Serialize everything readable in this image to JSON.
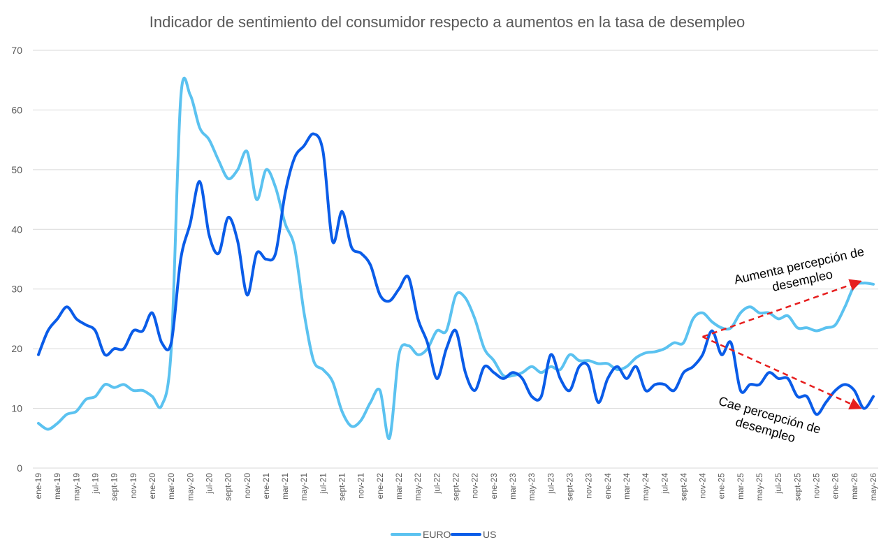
{
  "chart_data": {
    "type": "line",
    "title": "Indicador de sentimiento del consumidor respecto a aumentos en la tasa de desempleo",
    "xlabel": "",
    "ylabel": "",
    "ylim": [
      0,
      70
    ],
    "yticks": [
      "0",
      "10",
      "20",
      "30",
      "40",
      "50",
      "60",
      "70"
    ],
    "grid": true,
    "legend_position": "bottom",
    "x_tick_labels": [
      "ene-19",
      "mar-19",
      "may-19",
      "jul-19",
      "sept-19",
      "nov-19",
      "ene-20",
      "mar-20",
      "may-20",
      "jul-20",
      "sept-20",
      "nov-20",
      "ene-21",
      "mar-21",
      "may-21",
      "jul-21",
      "sept-21",
      "nov-21",
      "ene-22",
      "mar-22",
      "may-22",
      "jul-22",
      "sept-22",
      "nov-22",
      "ene-23",
      "mar-23",
      "may-23",
      "jul-23",
      "sept-23",
      "nov-23",
      "ene-24",
      "mar-24",
      "may-24",
      "jul-24",
      "sept-24",
      "nov-24",
      "ene-25",
      "mar-25",
      "may-25",
      "jul-25",
      "sept-25",
      "nov-25",
      "ene-26",
      "mar-26",
      "may-26"
    ],
    "x": [
      "ene-19",
      "feb-19",
      "mar-19",
      "abr-19",
      "may-19",
      "jun-19",
      "jul-19",
      "ago-19",
      "sept-19",
      "oct-19",
      "nov-19",
      "dic-19",
      "ene-20",
      "feb-20",
      "mar-20",
      "abr-20",
      "may-20",
      "jun-20",
      "jul-20",
      "ago-20",
      "sept-20",
      "oct-20",
      "nov-20",
      "dic-20",
      "ene-21",
      "feb-21",
      "mar-21",
      "abr-21",
      "may-21",
      "jun-21",
      "jul-21",
      "ago-21",
      "sept-21",
      "oct-21",
      "nov-21",
      "dic-21",
      "ene-22",
      "feb-22",
      "mar-22",
      "abr-22",
      "may-22",
      "jun-22",
      "jul-22",
      "ago-22",
      "sept-22",
      "oct-22",
      "nov-22",
      "dic-22",
      "ene-23",
      "feb-23",
      "mar-23",
      "abr-23",
      "may-23",
      "jun-23",
      "jul-23",
      "ago-23",
      "sept-23",
      "oct-23",
      "nov-23",
      "dic-23",
      "ene-24",
      "feb-24",
      "mar-24",
      "abr-24",
      "may-24",
      "jun-24",
      "jul-24",
      "ago-24",
      "sept-24",
      "oct-24",
      "nov-24",
      "dic-24",
      "ene-25",
      "feb-25",
      "mar-25",
      "abr-25",
      "may-25",
      "jun-25",
      "jul-25",
      "ago-25",
      "sept-25",
      "oct-25",
      "nov-25",
      "dic-25",
      "ene-26",
      "feb-26",
      "mar-26",
      "abr-26",
      "may-26"
    ],
    "series": [
      {
        "name": "EURO",
        "color": "#5BC2F0",
        "values": [
          7.5,
          6.5,
          7.5,
          9,
          9.5,
          11.5,
          12,
          14,
          13.5,
          14,
          13,
          13,
          12,
          10.5,
          20,
          62,
          62.5,
          57,
          55,
          51.5,
          48.5,
          50,
          53,
          45,
          50,
          47,
          41,
          37,
          26,
          18,
          16.5,
          14.5,
          9.5,
          7,
          8,
          11,
          13,
          5,
          19,
          20.5,
          19,
          20,
          23,
          23,
          29,
          28.5,
          25,
          20,
          18,
          15.5,
          15.5,
          16,
          17,
          16,
          17,
          16.5,
          19,
          18,
          18,
          17.5,
          17.5,
          16.5,
          17,
          18.5,
          19.3,
          19.5,
          20,
          21,
          21,
          25,
          26,
          24.5,
          23.5,
          23.5,
          26,
          27,
          26,
          26,
          25,
          25.5,
          23.5,
          23.5,
          23,
          23.5,
          24,
          27,
          30.5,
          31,
          30.8
        ]
      },
      {
        "name": "US",
        "color": "#0A5CE8",
        "values": [
          19,
          23,
          25,
          27,
          25,
          24,
          23,
          19,
          20,
          20,
          23,
          23,
          26,
          21,
          21,
          35,
          41,
          48,
          39,
          36,
          42,
          38,
          29,
          36,
          35,
          36,
          46,
          52,
          54,
          56,
          53,
          38,
          43,
          37,
          36,
          34,
          29,
          28,
          30,
          32,
          25,
          21,
          15,
          20,
          23,
          16,
          13,
          17,
          16,
          15,
          16,
          15,
          12,
          12,
          19,
          15,
          13,
          17,
          17,
          11,
          15,
          17,
          15,
          17,
          13,
          14,
          14,
          13,
          16,
          17,
          19,
          23,
          19,
          21,
          13,
          14,
          14,
          16,
          15,
          15,
          12,
          12,
          9,
          11,
          13,
          14,
          13,
          10,
          12
        ]
      }
    ],
    "annotations": [
      {
        "lines": [
          "Aumenta percepción de",
          "desempleo"
        ],
        "color": "#000000",
        "arrow_color": "#E61E1E",
        "from": [
          "nov-24",
          22
        ],
        "to": [
          "may-26",
          31.3
        ]
      },
      {
        "lines": [
          "Cae percepción de",
          "desempleo"
        ],
        "color": "#000000",
        "arrow_color": "#E61E1E",
        "from": [
          "nov-24",
          22
        ],
        "to": [
          "may-26",
          10
        ]
      }
    ]
  }
}
